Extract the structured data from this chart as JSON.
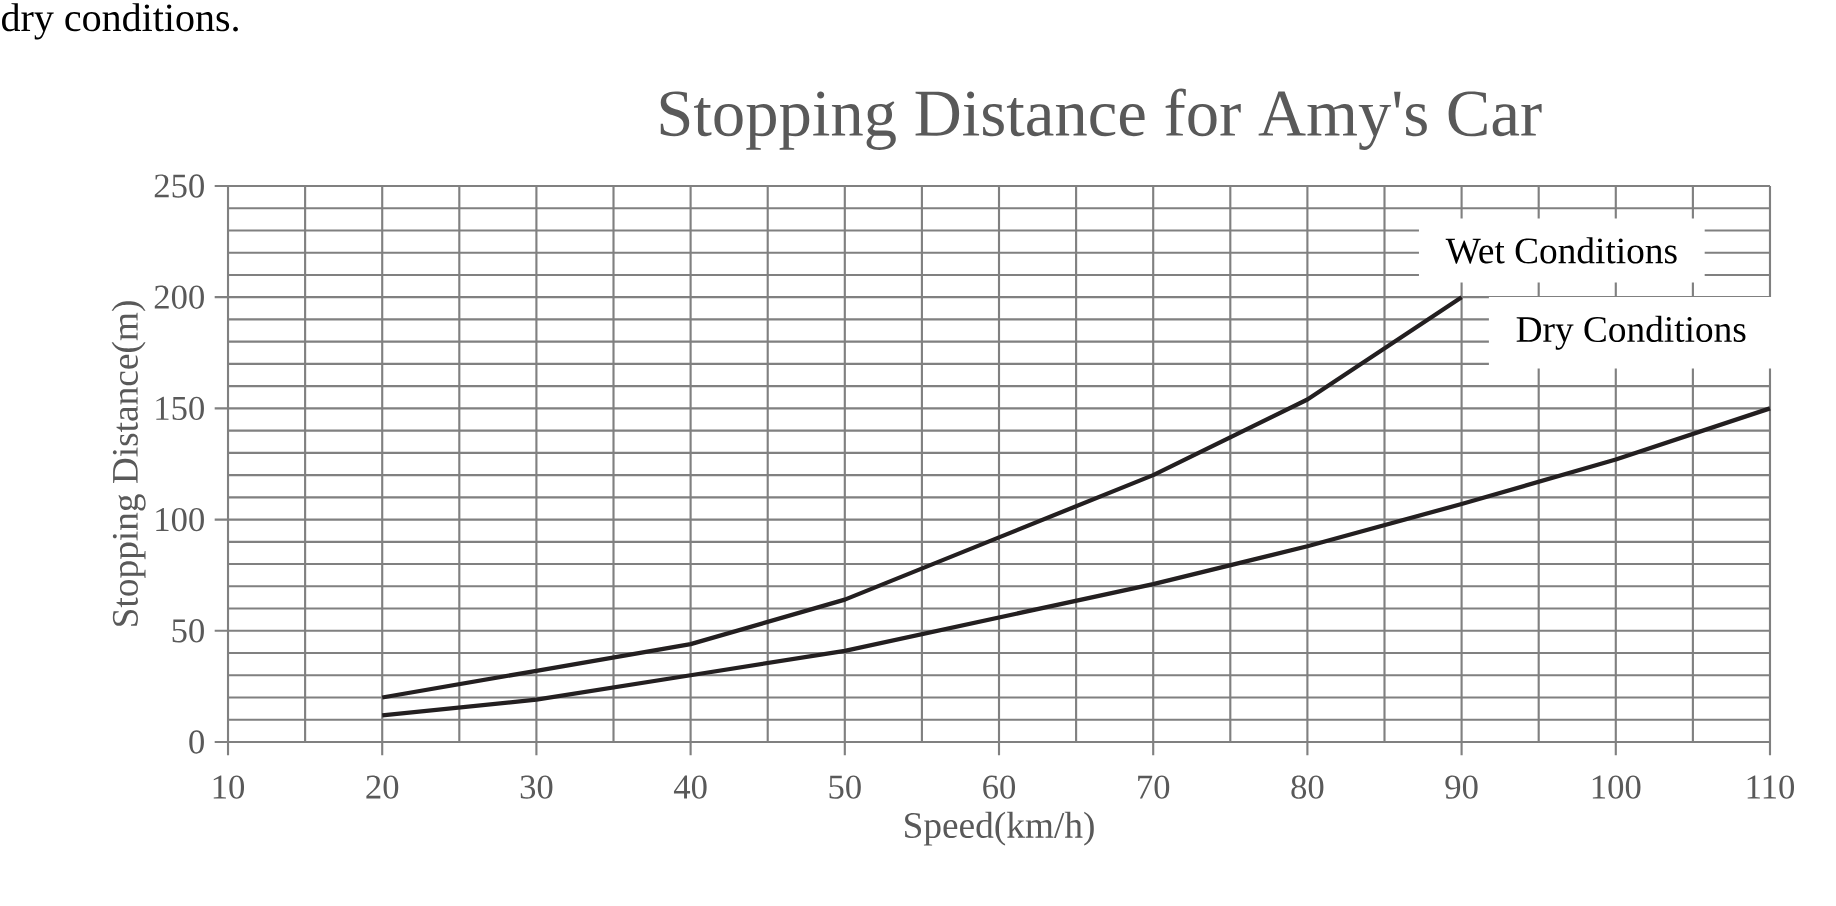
{
  "chart_data": {
    "type": "line",
    "title": "Stopping Distance for Amy's Car",
    "xlabel": "Speed(km/h)",
    "ylabel": "Stopping Distance(m)",
    "annotations": [
      "dry conditions."
    ],
    "series": [
      {
        "name": "Wet Conditions",
        "color": "#231f20",
        "x": [
          20,
          30,
          40,
          50,
          60,
          70,
          80,
          90
        ],
        "values": [
          20,
          32,
          44,
          64,
          92,
          120,
          154,
          200
        ]
      },
      {
        "name": "Dry Conditions",
        "color": "#231f20",
        "x": [
          20,
          30,
          40,
          50,
          60,
          70,
          80,
          90,
          100,
          110
        ],
        "values": [
          12,
          19,
          30,
          41,
          56,
          71,
          88,
          107,
          127,
          150
        ]
      }
    ],
    "xlim": [
      10,
      110
    ],
    "xticks": [
      10,
      20,
      30,
      40,
      50,
      60,
      70,
      80,
      90,
      100,
      110
    ],
    "ylim": [
      0,
      250
    ],
    "yticks": [
      0,
      50,
      100,
      150,
      200,
      250
    ],
    "grid": true,
    "marker": "none",
    "line_style": "solid"
  }
}
